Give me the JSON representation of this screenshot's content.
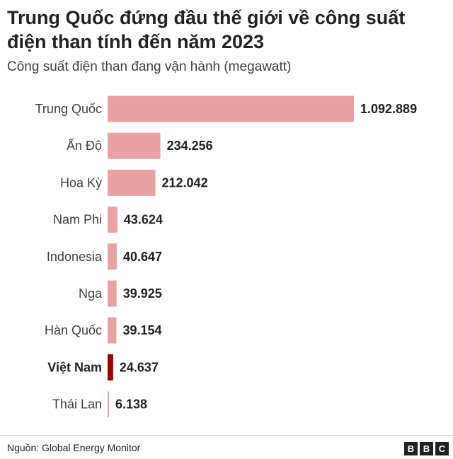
{
  "title": "Trung Quốc đứng đầu thế giới về công suất điện than tính đến năm 2023",
  "subtitle": "Công suất điện than đang vận hành (megawatt)",
  "source": "Nguồn: Global Energy Monitor",
  "logo": {
    "letters": [
      "B",
      "B",
      "C"
    ]
  },
  "colors": {
    "bar": "#e8a2a2",
    "highlight": "#990000",
    "text": "#222222",
    "muted": "#404040"
  },
  "chart_data": {
    "type": "bar",
    "orientation": "horizontal",
    "categories": [
      "Trung Quốc",
      "Ấn Độ",
      "Hoa Kỳ",
      "Nam Phi",
      "Indonesia",
      "Nga",
      "Hàn Quốc",
      "Việt Nam",
      "Thái Lan"
    ],
    "values": [
      1092889,
      234256,
      212042,
      43624,
      40647,
      39925,
      39154,
      24637,
      6138
    ],
    "value_labels": [
      "1.092.889",
      "234.256",
      "212.042",
      "43.624",
      "40.647",
      "39.925",
      "39.154",
      "24.637",
      "6.138"
    ],
    "highlight": "Việt Nam",
    "grid": false,
    "xlim": [
      0,
      1092889
    ]
  }
}
